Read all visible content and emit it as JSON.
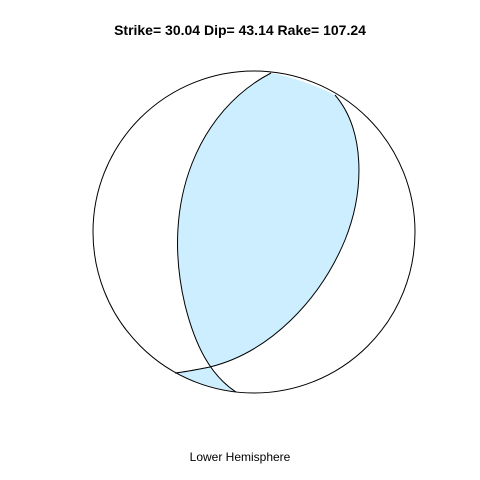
{
  "title": {
    "strike_label": "Strike=",
    "strike_value": "30.04",
    "dip_label": "Dip=",
    "dip_value": "43.14",
    "rake_label": "Rake=",
    "rake_value": "107.24"
  },
  "mechanism": {
    "strike": 30.04,
    "dip": 43.14,
    "rake": 107.24
  },
  "projection_label": "Lower Hemisphere",
  "colors": {
    "compressional_fill": "#cceeff",
    "outline": "#000000",
    "background": "#ffffff"
  }
}
